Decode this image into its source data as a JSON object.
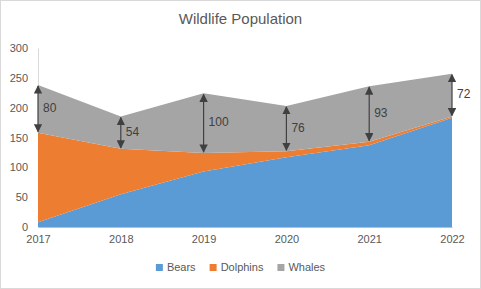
{
  "chart_data": {
    "type": "area",
    "title": "Wildlife Population",
    "stacked": true,
    "categories": [
      "2017",
      "2018",
      "2019",
      "2020",
      "2021",
      "2022"
    ],
    "series": [
      {
        "name": "Bears",
        "color": "#5b9bd5",
        "values": [
          8,
          55,
          93,
          117,
          137,
          183
        ]
      },
      {
        "name": "Dolphins",
        "color": "#ed7d31",
        "values": [
          150,
          76,
          31,
          10,
          6,
          2
        ]
      },
      {
        "name": "Whales",
        "color": "#a5a5a5",
        "values": [
          80,
          54,
          100,
          76,
          93,
          72
        ],
        "data_labels": true
      }
    ],
    "ylim": [
      0,
      300
    ],
    "yticks": [
      0,
      50,
      100,
      150,
      200,
      250,
      300
    ],
    "grid": false,
    "legend": "bottom"
  }
}
